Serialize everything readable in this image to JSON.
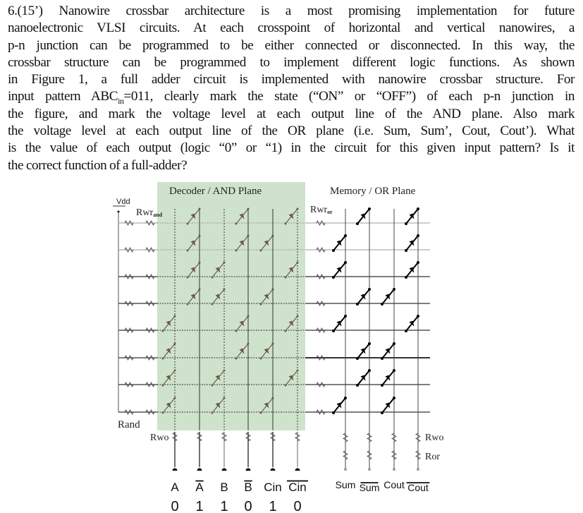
{
  "question": {
    "lines": [
      "6.(15’) Nanowire crossbar architecture is a most promising implementation for future",
      "nanoelectronic VLSI circuits. At each crosspoint of horizontal and vertical nanowires, a",
      "p-n junction can be programmed to be either connected or disconnected. In this way, the",
      "crossbar structure can be programmed to implement different logic functions. As shown",
      "in Figure 1, a full adder circuit is implemented with nanowire crossbar structure. For"
    ],
    "line6_pre": "input pattern ABC",
    "line6_sub": "in",
    "line6_post": "=011, clearly mark the state (“ON” or “OFF”) of each p-n junction in",
    "lines_after": [
      "the figure, and mark the voltage level at each output line of the AND plane. Also mark",
      "the voltage level at each output line of the OR plane (i.e. Sum, Sum’, Cout, Cout’). What",
      "is the value of each output (logic “0” or “1) in the circuit for this given input pattern? Is it",
      "the correct function of a full-adder?"
    ]
  },
  "figure": {
    "and_plane_title": "Decoder / AND Plane",
    "or_plane_title": "Memory / OR Plane",
    "vdd_label": "Vdd",
    "rwr_and_label": "Rwr",
    "rwr_and_sub": "and",
    "rwr_or_label": "Rwr",
    "rwr_or_sub": "or",
    "rand_label": "Rand",
    "rwo_left_label": "Rwo",
    "rwo_right_label": "Rwo",
    "ror_label": "Ror",
    "colors": {
      "and_plane_bg": "#cfe3cc",
      "and_diode": "#6b5a48",
      "or_diode": "#000000"
    },
    "inputs": [
      {
        "label": "A",
        "bar": false,
        "value": "0"
      },
      {
        "label": "A",
        "bar": true,
        "value": "1"
      },
      {
        "label": "B",
        "bar": false,
        "value": "1"
      },
      {
        "label": "B",
        "bar": true,
        "value": "0"
      },
      {
        "label": "Cin",
        "bar": false,
        "value": "1"
      },
      {
        "label": "Cin",
        "bar": true,
        "value": "0"
      }
    ],
    "outputs": [
      {
        "label": "Sum",
        "bar": false
      },
      {
        "label": "Sum",
        "bar": true
      },
      {
        "label": "Cout",
        "bar": false
      },
      {
        "label": "Cout",
        "bar": true
      }
    ],
    "and_connections": [
      [
        1,
        3,
        5
      ],
      [
        1,
        3,
        4
      ],
      [
        1,
        2,
        5
      ],
      [
        1,
        2,
        4
      ],
      [
        0,
        3,
        5
      ],
      [
        0,
        3,
        4
      ],
      [
        0,
        2,
        5
      ],
      [
        0,
        2,
        4
      ]
    ],
    "or_connections": [
      [
        1,
        3
      ],
      [
        0,
        3
      ],
      [
        0,
        3
      ],
      [
        1,
        2
      ],
      [
        0,
        3
      ],
      [
        1,
        2
      ],
      [
        1,
        2
      ],
      [
        0,
        2
      ]
    ]
  }
}
